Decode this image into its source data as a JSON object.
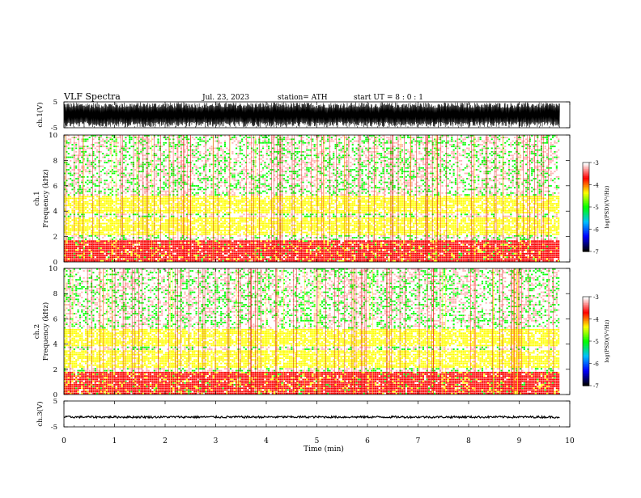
{
  "header": {
    "title": "VLF  Spectra",
    "date": "Jul.  23, 2023",
    "station": "station= ATH",
    "start": "start  UT  =    8  : 0   : 1"
  },
  "chart_data": [
    {
      "type": "line",
      "name": "ch1-waveform",
      "ylabel": "ch.1(V)",
      "ylim": [
        -5,
        5
      ],
      "yticks": [
        "5",
        "-5"
      ],
      "xlim": [
        0,
        10
      ],
      "data_extent": [
        0,
        9.8
      ],
      "description_values": "dense broadband waveform filling about ±4.8 V"
    },
    {
      "type": "heatmap",
      "name": "ch1-spectrogram",
      "ylabel": "ch.1\nFrequency  (kHz)",
      "ylim": [
        0,
        10
      ],
      "yticks": [
        "0",
        "2",
        "4",
        "6",
        "8",
        "10"
      ],
      "xlim": [
        0,
        10
      ],
      "data_extent": [
        0,
        9.8
      ],
      "colorbar": {
        "label": "log(PSD)(V²/Hz)",
        "range": [
          -7,
          -3
        ],
        "ticks": [
          "-3",
          "-4",
          "-5",
          "-6",
          "-7"
        ]
      },
      "bands_khz": [
        {
          "f": [
            0.0,
            1.7
          ],
          "level": -4.0
        },
        {
          "f": [
            1.7,
            2.1
          ],
          "level": -4.7
        },
        {
          "f": [
            2.1,
            3.5
          ],
          "level": -4.2
        },
        {
          "f": [
            3.5,
            3.8
          ],
          "level": -4.8
        },
        {
          "f": [
            3.8,
            5.2
          ],
          "level": -4.3
        },
        {
          "f": [
            5.2,
            10.0
          ],
          "level": -4.7
        }
      ]
    },
    {
      "type": "heatmap",
      "name": "ch2-spectrogram",
      "ylabel": "ch.2\nFrequency  (kHz)",
      "ylim": [
        0,
        10
      ],
      "yticks": [
        "0",
        "2",
        "4",
        "6",
        "8",
        "10"
      ],
      "xlim": [
        0,
        10
      ],
      "data_extent": [
        0,
        9.8
      ],
      "colorbar": {
        "label": "log(PSD)(V²/Hz)",
        "range": [
          -7,
          -3
        ],
        "ticks": [
          "-3",
          "-4",
          "-5",
          "-6",
          "-7"
        ]
      },
      "bands_khz": [
        {
          "f": [
            0.0,
            1.8
          ],
          "level": -4.0
        },
        {
          "f": [
            1.8,
            2.1
          ],
          "level": -4.8
        },
        {
          "f": [
            2.1,
            3.5
          ],
          "level": -4.3
        },
        {
          "f": [
            3.5,
            3.8
          ],
          "level": -4.8
        },
        {
          "f": [
            3.8,
            5.2
          ],
          "level": -4.4
        },
        {
          "f": [
            5.2,
            10.0
          ],
          "level": -4.8
        }
      ]
    },
    {
      "type": "line",
      "name": "ch3-waveform",
      "ylabel": "ch.3(V)",
      "ylim": [
        -5,
        5
      ],
      "yticks": [
        "5",
        "-5"
      ],
      "xlim": [
        0,
        10
      ],
      "data_extent": [
        0,
        9.8
      ],
      "level_v": -1.2
    }
  ],
  "xaxis": {
    "label": "Time  (min)",
    "ticks": [
      "0",
      "1",
      "2",
      "3",
      "4",
      "5",
      "6",
      "7",
      "8",
      "9",
      "10"
    ]
  },
  "colors": {
    "waveform": "#000000",
    "colormap": [
      "#000000",
      "#0000ff",
      "#00c0ff",
      "#00ff00",
      "#ffff00",
      "#ff0000",
      "#ffffff"
    ]
  }
}
